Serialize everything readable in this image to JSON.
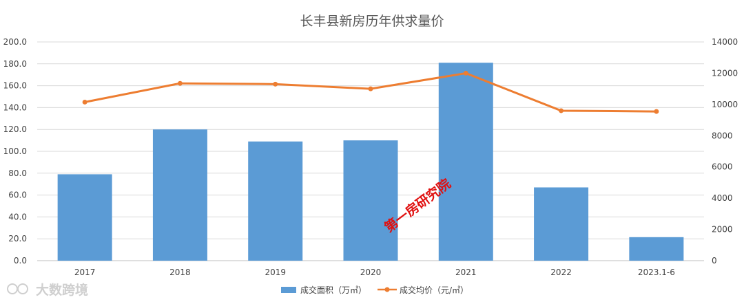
{
  "chart_data": {
    "type": "bar+line",
    "title": "长丰县新房历年供求量价",
    "categories": [
      "2017",
      "2018",
      "2019",
      "2020",
      "2021",
      "2022",
      "2023.1-6"
    ],
    "series": [
      {
        "name": "成交面积（万㎡）",
        "type": "bar",
        "axis": "left",
        "color": "#5b9bd5",
        "values": [
          79.0,
          120.0,
          109.0,
          110.0,
          181.0,
          67.0,
          21.5
        ]
      },
      {
        "name": "成交均价（元/㎡）",
        "type": "line",
        "axis": "right",
        "color": "#ed7d31",
        "values": [
          10150,
          11350,
          11300,
          11000,
          12000,
          9600,
          9550
        ]
      }
    ],
    "y_left": {
      "min": 0,
      "max": 200,
      "step": 20,
      "ticks": [
        "0.0",
        "20.0",
        "40.0",
        "60.0",
        "80.0",
        "100.0",
        "120.0",
        "140.0",
        "160.0",
        "180.0",
        "200.0"
      ]
    },
    "y_right": {
      "min": 0,
      "max": 14000,
      "step": 2000,
      "ticks": [
        "0",
        "2000",
        "4000",
        "6000",
        "8000",
        "10000",
        "12000",
        "14000"
      ]
    },
    "grid": true,
    "legend_position": "bottom"
  },
  "watermarks": {
    "center": "第一房研究院",
    "corner": "大数跨境"
  }
}
